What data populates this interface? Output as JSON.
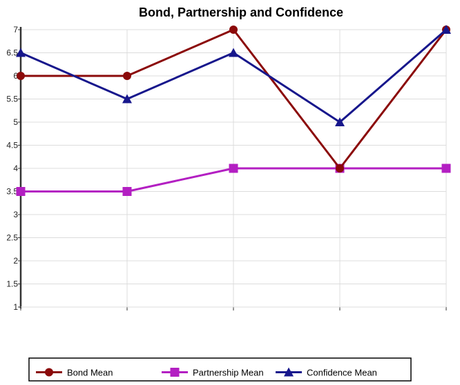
{
  "chart_data": {
    "type": "line",
    "title": "Bond, Partnership and Confidence",
    "xlabel": "",
    "ylabel": "",
    "ylim": [
      1,
      7
    ],
    "yticks": [
      "1",
      "1.5",
      "2",
      "2.5",
      "3",
      "3.5",
      "4",
      "4.5",
      "5",
      "5.5",
      "6",
      "6.5",
      "7"
    ],
    "x": [
      1,
      2,
      3,
      4,
      5
    ],
    "grid": true,
    "legend_position": "bottom",
    "series": [
      {
        "name": "Bond Mean",
        "color": "#8b0a0a",
        "marker": "circle",
        "values": [
          6,
          6,
          7,
          4,
          7
        ]
      },
      {
        "name": "Partnership Mean",
        "color": "#b31fc2",
        "marker": "square",
        "values": [
          3.5,
          3.5,
          4,
          4,
          4
        ]
      },
      {
        "name": "Confidence Mean",
        "color": "#17178c",
        "marker": "triangle",
        "values": [
          6.5,
          5.5,
          6.5,
          5,
          7
        ]
      }
    ]
  }
}
